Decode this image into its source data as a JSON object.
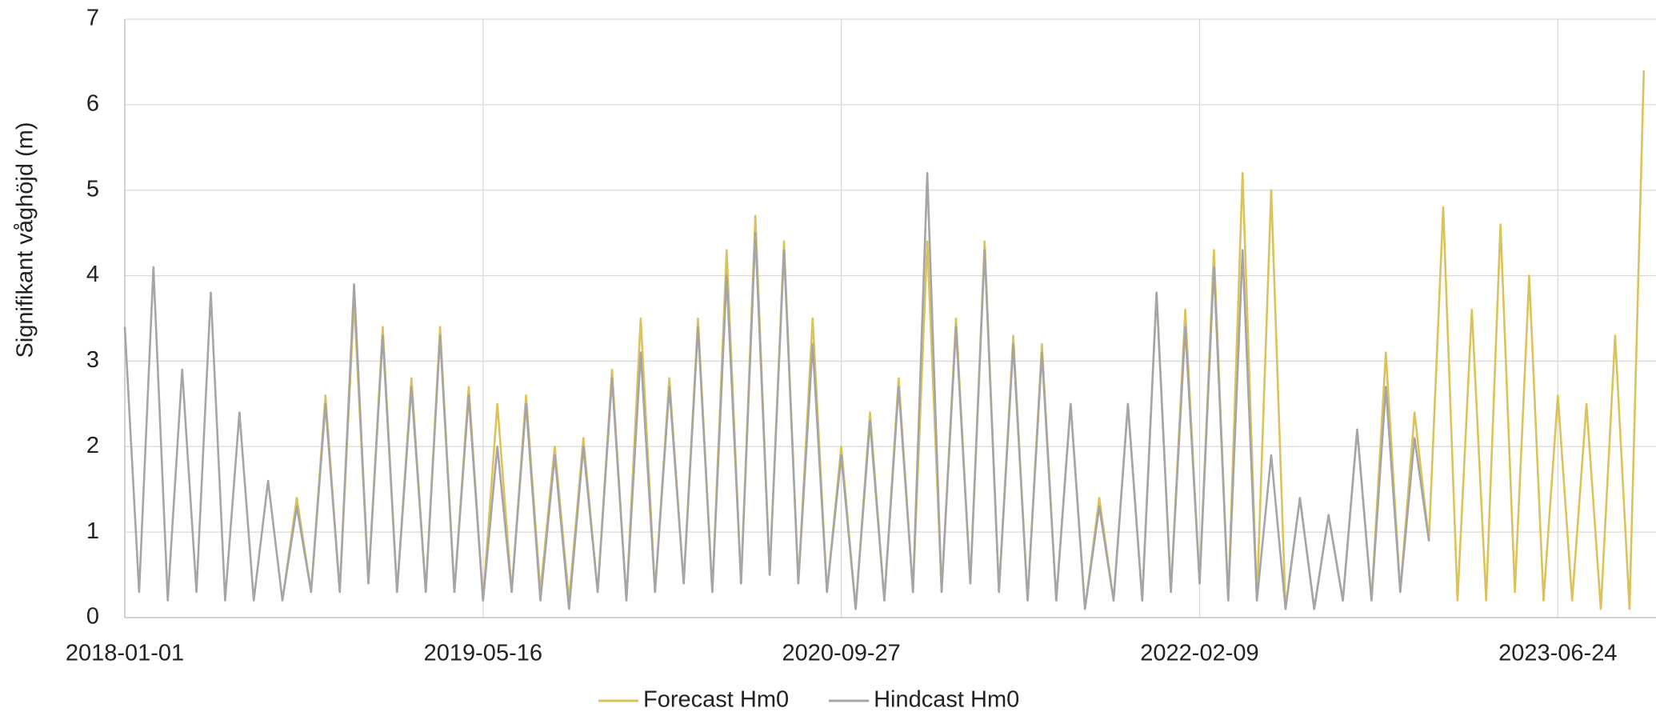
{
  "chart_data": {
    "type": "line",
    "y_label": "Signifikant våghöjd (m)",
    "x": [
      "2018-01-01",
      "2018-01-21",
      "2018-02-10",
      "2018-03-02",
      "2018-03-22",
      "2018-04-11",
      "2018-05-01",
      "2018-05-21",
      "2018-06-10",
      "2018-06-30",
      "2018-07-20",
      "2018-08-09",
      "2018-08-29",
      "2018-09-18",
      "2018-10-08",
      "2018-10-28",
      "2018-11-17",
      "2018-12-07",
      "2018-12-27",
      "2019-01-16",
      "2019-02-05",
      "2019-02-25",
      "2019-03-17",
      "2019-04-06",
      "2019-04-26",
      "2019-05-16",
      "2019-06-05",
      "2019-06-25",
      "2019-07-15",
      "2019-08-04",
      "2019-08-24",
      "2019-09-13",
      "2019-10-03",
      "2019-10-23",
      "2019-11-12",
      "2019-12-02",
      "2019-12-22",
      "2020-01-11",
      "2020-01-31",
      "2020-02-20",
      "2020-03-11",
      "2020-03-31",
      "2020-04-20",
      "2020-05-10",
      "2020-05-30",
      "2020-06-19",
      "2020-07-09",
      "2020-07-29",
      "2020-08-18",
      "2020-09-07",
      "2020-09-27",
      "2020-10-17",
      "2020-11-06",
      "2020-11-26",
      "2020-12-16",
      "2021-01-05",
      "2021-01-25",
      "2021-02-14",
      "2021-03-06",
      "2021-03-26",
      "2021-04-15",
      "2021-05-05",
      "2021-05-25",
      "2021-06-14",
      "2021-07-04",
      "2021-07-24",
      "2021-08-13",
      "2021-09-02",
      "2021-09-22",
      "2021-10-12",
      "2021-11-01",
      "2021-11-21",
      "2021-12-11",
      "2021-12-31",
      "2022-01-20",
      "2022-02-09",
      "2022-03-01",
      "2022-03-21",
      "2022-04-10",
      "2022-04-30",
      "2022-05-20",
      "2022-06-09",
      "2022-06-29",
      "2022-07-19",
      "2022-08-08",
      "2022-08-28",
      "2022-09-17",
      "2022-10-07",
      "2022-10-27",
      "2022-11-16",
      "2022-12-06",
      "2022-12-26",
      "2023-01-15",
      "2023-02-04",
      "2023-02-24",
      "2023-03-16",
      "2023-04-05",
      "2023-04-25",
      "2023-05-15",
      "2023-06-04",
      "2023-06-24",
      "2023-07-14",
      "2023-08-03",
      "2023-08-23",
      "2023-09-12",
      "2023-10-02",
      "2023-10-22"
    ],
    "series": [
      {
        "name": "Forecast Hm0",
        "color": "#dcc25a",
        "values": [
          null,
          null,
          null,
          null,
          null,
          null,
          null,
          null,
          null,
          null,
          null,
          0.2,
          1.4,
          0.3,
          2.6,
          0.3,
          3.7,
          0.4,
          3.4,
          0.3,
          2.8,
          0.3,
          3.4,
          0.3,
          2.7,
          0.2,
          2.5,
          0.3,
          2.6,
          0.3,
          2.0,
          0.2,
          2.1,
          0.3,
          2.9,
          0.2,
          3.5,
          0.3,
          2.8,
          0.4,
          3.5,
          0.3,
          4.3,
          0.4,
          4.7,
          0.5,
          4.4,
          0.4,
          3.5,
          0.3,
          2.0,
          0.1,
          2.4,
          0.2,
          2.8,
          0.3,
          4.4,
          0.3,
          3.5,
          0.4,
          4.4,
          0.3,
          3.3,
          0.2,
          3.2,
          0.2,
          2.5,
          0.1,
          1.4,
          0.2,
          2.5,
          0.2,
          3.8,
          0.3,
          3.6,
          0.4,
          4.3,
          0.2,
          5.2,
          0.2,
          5.0,
          0.1,
          1.4,
          0.1,
          1.2,
          0.2,
          2.2,
          0.2,
          3.1,
          0.3,
          2.4,
          0.9,
          4.8,
          0.2,
          3.6,
          0.2,
          4.6,
          0.3,
          4.0,
          0.2,
          2.6,
          0.2,
          2.5,
          0.1,
          3.3,
          0.1,
          6.4
        ]
      },
      {
        "name": "Hindcast Hm0",
        "color": "#a5a5a7",
        "values": [
          3.4,
          0.3,
          4.1,
          0.2,
          2.9,
          0.3,
          3.8,
          0.2,
          2.4,
          0.2,
          1.6,
          0.2,
          1.3,
          0.3,
          2.5,
          0.3,
          3.9,
          0.4,
          3.3,
          0.3,
          2.7,
          0.3,
          3.3,
          0.3,
          2.6,
          0.2,
          2.0,
          0.3,
          2.5,
          0.2,
          1.9,
          0.1,
          2.0,
          0.3,
          2.8,
          0.2,
          3.1,
          0.3,
          2.7,
          0.4,
          3.4,
          0.3,
          4.0,
          0.4,
          4.5,
          0.5,
          4.3,
          0.4,
          3.2,
          0.3,
          1.9,
          0.1,
          2.3,
          0.2,
          2.7,
          0.3,
          5.2,
          0.3,
          3.4,
          0.4,
          4.3,
          0.3,
          3.2,
          0.2,
          3.1,
          0.2,
          2.5,
          0.1,
          1.3,
          0.2,
          2.5,
          0.2,
          3.8,
          0.3,
          3.4,
          0.4,
          4.1,
          0.2,
          4.3,
          0.2,
          1.9,
          0.1,
          1.4,
          0.1,
          1.2,
          0.2,
          2.2,
          0.2,
          2.7,
          0.3,
          2.1,
          0.9,
          null,
          null,
          null,
          null,
          null,
          null,
          null,
          null,
          null,
          null,
          null,
          null,
          null,
          null,
          null
        ]
      }
    ],
    "xlim": [
      "2018-01-01",
      "2023-11-08"
    ],
    "xticks": [
      "2018-01-01",
      "2019-05-16",
      "2020-09-27",
      "2022-02-09",
      "2023-06-24"
    ],
    "ylim": [
      0,
      7
    ],
    "yticks": [
      0,
      1,
      2,
      3,
      4,
      5,
      6,
      7
    ],
    "grid": true
  }
}
